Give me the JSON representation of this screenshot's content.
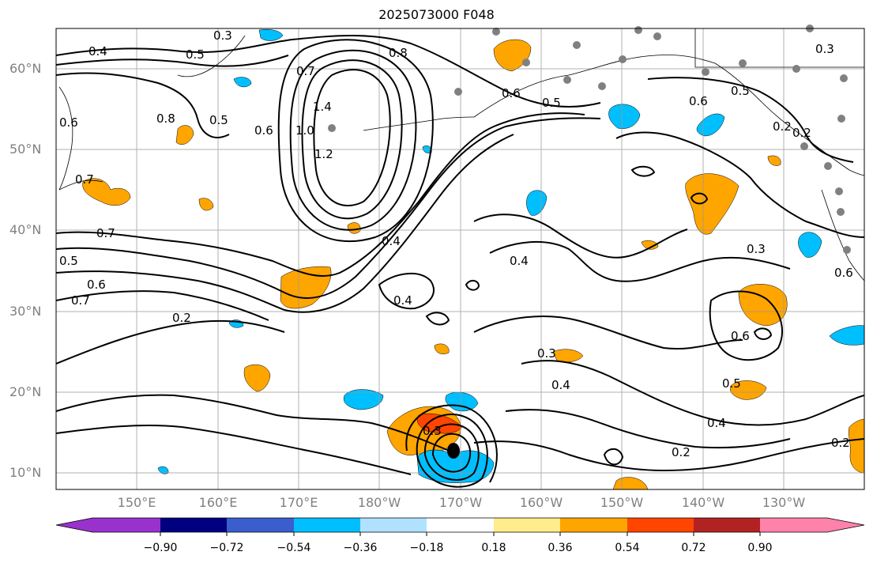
{
  "title": "2025073000 F048",
  "latitude_labels": [
    "10°N",
    "20°N",
    "30°N",
    "40°N",
    "50°N",
    "60°N"
  ],
  "longitude_labels": [
    "150°E",
    "160°E",
    "170°E",
    "180°W",
    "170°W",
    "160°W",
    "150°W",
    "140°W",
    "130°W"
  ],
  "contour_labels": [
    "0.4",
    "0.3",
    "0.5",
    "0.7",
    "0.8",
    "0.6",
    "0.5",
    "1.4",
    "1.2",
    "1.0",
    "0.6",
    "0.5",
    "0.8",
    "0.6",
    "0.7",
    "0.7",
    "0.5",
    "0.6",
    "0.7",
    "0.2",
    "0.4",
    "0.4",
    "0.4",
    "0.3",
    "0.3",
    "0.4",
    "0.3",
    "0.2",
    "0.4",
    "0.5",
    "0.6",
    "0.3",
    "0.6",
    "0.5",
    "0.2",
    "0.2",
    "0.6",
    "0.2"
  ],
  "colorbar": {
    "ticks": [
      "−0.90",
      "−0.72",
      "−0.54",
      "−0.36",
      "−0.18",
      "0.18",
      "0.36",
      "0.54",
      "0.72",
      "0.90"
    ],
    "colors": [
      "#9932CC",
      "#000080",
      "#3A5FCD",
      "#00BFFF",
      "#B0E2FF",
      "#FFFFFF",
      "#FFEC8B",
      "#FFA500",
      "#FF4500",
      "#B22222",
      "#FF82AB"
    ]
  },
  "fill_colors": {
    "orange": "#FFA500",
    "red": "#FF4500",
    "blue": "#00BFFF",
    "light_blue": "#B0E2FF",
    "yellow": "#FFEC8B"
  },
  "station_marker_color": "#808080",
  "storm_marker_color": "#000000"
}
